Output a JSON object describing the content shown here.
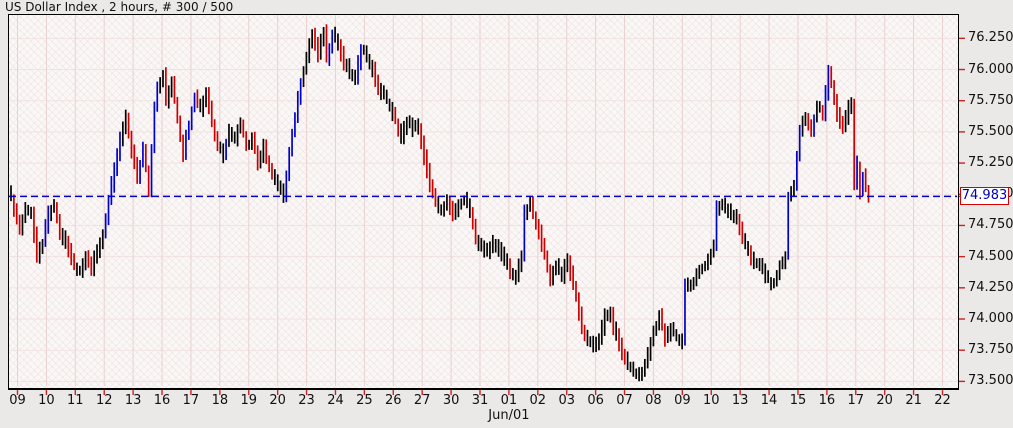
{
  "window": {
    "title": "US Dollar Index , 2 hours, # 300 / 500"
  },
  "price_marker": {
    "label": "74.983",
    "value": 74.983
  },
  "colors": {
    "bar_neutral": "#000000",
    "bar_up": "#0000cc",
    "bar_down": "#cc0000",
    "axis_tick": "#cc2222",
    "marker_border": "#dd0000",
    "marker_text": "#0000bb",
    "dashed_line": "#0000cc",
    "grid_vertical": "#e9d1d1",
    "grid_horizontal": "#f1e1e1"
  },
  "chart_data": {
    "type": "ohlc-bar",
    "title": "US Dollar Index",
    "interval": "2 hours",
    "bars_shown": 300,
    "bars_total": 500,
    "last_price": 74.983,
    "ylim": [
      73.455,
      76.445
    ],
    "y_ticks": [
      76.25,
      76.0,
      75.75,
      75.5,
      75.25,
      75.0,
      74.75,
      74.5,
      74.25,
      74.0,
      73.75,
      73.5
    ],
    "y_tick_labels": [
      "76.250",
      "76.000",
      "75.750",
      "75.500",
      "75.250",
      "75.000",
      "74.750",
      "74.500",
      "74.250",
      "74.000",
      "73.750",
      "73.500"
    ],
    "x_labels": [
      "09",
      "10",
      "11",
      "12",
      "13",
      "16",
      "17",
      "18",
      "19",
      "20",
      "23",
      "24",
      "25",
      "26",
      "27",
      "30",
      "31",
      "01",
      "02",
      "03",
      "06",
      "07",
      "08",
      "09",
      "10",
      "13",
      "14",
      "15",
      "16",
      "17",
      "20",
      "21",
      "22"
    ],
    "month_label": "Jun/01",
    "month_label_index": 17,
    "grid": true,
    "legend": "none",
    "price_path": [
      [
        0,
        74.97
      ],
      [
        2,
        74.8
      ],
      [
        3,
        74.72
      ],
      [
        5,
        74.88
      ],
      [
        7,
        74.86
      ],
      [
        9,
        74.5
      ],
      [
        11,
        74.62
      ],
      [
        13,
        74.85
      ],
      [
        15,
        74.9
      ],
      [
        17,
        74.7
      ],
      [
        19,
        74.62
      ],
      [
        22,
        74.42
      ],
      [
        24,
        74.38
      ],
      [
        26,
        74.52
      ],
      [
        28,
        74.4
      ],
      [
        30,
        74.55
      ],
      [
        32,
        74.68
      ],
      [
        34,
        74.95
      ],
      [
        36,
        75.2
      ],
      [
        38,
        75.45
      ],
      [
        40,
        75.62
      ],
      [
        42,
        75.35
      ],
      [
        44,
        75.12
      ],
      [
        46,
        75.38
      ],
      [
        48,
        75.02
      ],
      [
        50,
        75.72
      ],
      [
        51,
        75.85
      ],
      [
        53,
        75.95
      ],
      [
        54,
        75.75
      ],
      [
        56,
        75.92
      ],
      [
        58,
        75.6
      ],
      [
        60,
        75.32
      ],
      [
        62,
        75.58
      ],
      [
        64,
        75.8
      ],
      [
        66,
        75.68
      ],
      [
        68,
        75.82
      ],
      [
        70,
        75.58
      ],
      [
        72,
        75.4
      ],
      [
        74,
        75.32
      ],
      [
        76,
        75.52
      ],
      [
        78,
        75.45
      ],
      [
        80,
        75.58
      ],
      [
        82,
        75.38
      ],
      [
        84,
        75.45
      ],
      [
        86,
        75.25
      ],
      [
        88,
        75.38
      ],
      [
        90,
        75.2
      ],
      [
        93,
        75.05
      ],
      [
        95,
        74.98
      ],
      [
        97,
        75.35
      ],
      [
        99,
        75.62
      ],
      [
        101,
        75.9
      ],
      [
        103,
        76.1
      ],
      [
        105,
        76.28
      ],
      [
        107,
        76.12
      ],
      [
        109,
        76.32
      ],
      [
        110,
        76.08
      ],
      [
        112,
        76.3
      ],
      [
        114,
        76.2
      ],
      [
        116,
        76.05
      ],
      [
        118,
        75.98
      ],
      [
        120,
        75.92
      ],
      [
        122,
        76.18
      ],
      [
        124,
        76.1
      ],
      [
        126,
        76.0
      ],
      [
        128,
        75.85
      ],
      [
        130,
        75.78
      ],
      [
        132,
        75.7
      ],
      [
        134,
        75.58
      ],
      [
        136,
        75.45
      ],
      [
        138,
        75.6
      ],
      [
        140,
        75.52
      ],
      [
        142,
        75.55
      ],
      [
        144,
        75.3
      ],
      [
        146,
        75.08
      ],
      [
        148,
        74.92
      ],
      [
        150,
        74.88
      ],
      [
        152,
        74.95
      ],
      [
        154,
        74.82
      ],
      [
        156,
        74.92
      ],
      [
        158,
        74.95
      ],
      [
        160,
        74.88
      ],
      [
        162,
        74.65
      ],
      [
        164,
        74.58
      ],
      [
        166,
        74.52
      ],
      [
        168,
        74.62
      ],
      [
        170,
        74.55
      ],
      [
        172,
        74.48
      ],
      [
        174,
        74.38
      ],
      [
        176,
        74.32
      ],
      [
        178,
        74.52
      ],
      [
        179,
        74.85
      ],
      [
        181,
        74.92
      ],
      [
        183,
        74.78
      ],
      [
        185,
        74.6
      ],
      [
        187,
        74.42
      ],
      [
        188,
        74.32
      ],
      [
        190,
        74.45
      ],
      [
        192,
        74.35
      ],
      [
        194,
        74.48
      ],
      [
        196,
        74.28
      ],
      [
        198,
        74.05
      ],
      [
        199,
        73.92
      ],
      [
        201,
        73.83
      ],
      [
        203,
        73.76
      ],
      [
        205,
        73.85
      ],
      [
        207,
        74.02
      ],
      [
        209,
        74.06
      ],
      [
        210,
        73.92
      ],
      [
        212,
        73.8
      ],
      [
        214,
        73.68
      ],
      [
        216,
        73.6
      ],
      [
        218,
        73.55
      ],
      [
        220,
        73.58
      ],
      [
        222,
        73.72
      ],
      [
        224,
        73.9
      ],
      [
        226,
        74.02
      ],
      [
        228,
        73.85
      ],
      [
        230,
        73.92
      ],
      [
        232,
        73.85
      ],
      [
        234,
        73.82
      ],
      [
        235,
        74.3
      ],
      [
        237,
        74.25
      ],
      [
        239,
        74.35
      ],
      [
        241,
        74.4
      ],
      [
        243,
        74.48
      ],
      [
        245,
        74.58
      ],
      [
        246,
        74.88
      ],
      [
        248,
        74.92
      ],
      [
        250,
        74.88
      ],
      [
        252,
        74.82
      ],
      [
        254,
        74.72
      ],
      [
        256,
        74.6
      ],
      [
        258,
        74.5
      ],
      [
        260,
        74.45
      ],
      [
        262,
        74.38
      ],
      [
        264,
        74.32
      ],
      [
        266,
        74.28
      ],
      [
        268,
        74.42
      ],
      [
        270,
        74.52
      ],
      [
        271,
        74.98
      ],
      [
        273,
        75.08
      ],
      [
        275,
        75.52
      ],
      [
        277,
        75.62
      ],
      [
        279,
        75.5
      ],
      [
        281,
        75.72
      ],
      [
        283,
        75.62
      ],
      [
        285,
        76.0
      ],
      [
        286,
        75.88
      ],
      [
        288,
        75.65
      ],
      [
        290,
        75.52
      ],
      [
        292,
        75.7
      ],
      [
        293,
        75.73
      ],
      [
        294,
        75.1
      ],
      [
        295,
        75.25
      ],
      [
        296,
        75.02
      ],
      [
        297,
        75.15
      ],
      [
        298,
        75.05
      ],
      [
        299,
        74.983
      ]
    ]
  }
}
